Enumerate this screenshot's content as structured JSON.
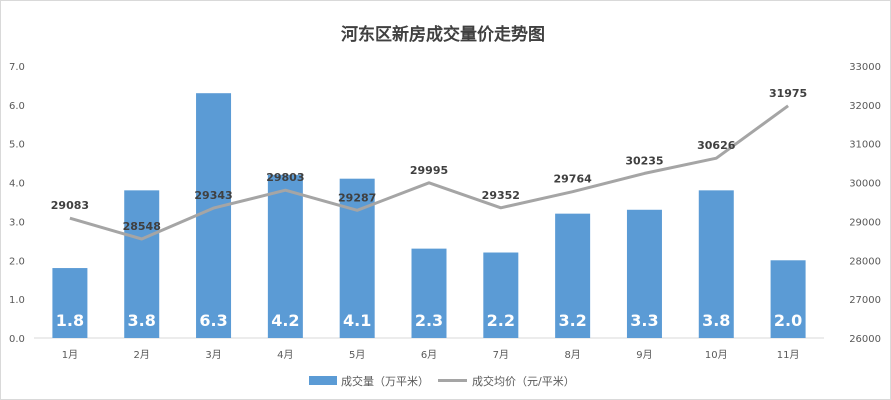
{
  "chart_data": {
    "type": "bar+line",
    "title": "河东区新房成交量价走势图",
    "categories": [
      "1月",
      "2月",
      "3月",
      "4月",
      "5月",
      "6月",
      "7月",
      "8月",
      "9月",
      "10月",
      "11月"
    ],
    "series": [
      {
        "name": "成交量（万平米）",
        "type": "bar",
        "axis": "left",
        "color": "#5b9bd5",
        "values": [
          1.8,
          3.8,
          6.3,
          4.2,
          4.1,
          2.3,
          2.2,
          3.2,
          3.3,
          3.8,
          2.0
        ],
        "labels": [
          "1.8",
          "3.8",
          "6.3",
          "4.2",
          "4.1",
          "2.3",
          "2.2",
          "3.2",
          "3.3",
          "3.8",
          "2.0"
        ]
      },
      {
        "name": "成交均价（元/平米）",
        "type": "line",
        "axis": "right",
        "color": "#a5a5a5",
        "values": [
          29083,
          28548,
          29343,
          29803,
          29287,
          29995,
          29352,
          29764,
          30235,
          30626,
          31975
        ],
        "labels": [
          "29083",
          "28548",
          "29343",
          "29803",
          "29287",
          "29995",
          "29352",
          "29764",
          "30235",
          "30626",
          "31975"
        ]
      }
    ],
    "y_left": {
      "ylim": [
        0,
        7
      ],
      "ticks": [
        0,
        1,
        2,
        3,
        4,
        5,
        6,
        7
      ],
      "tick_labels": [
        "0.0",
        "1.0",
        "2.0",
        "3.0",
        "4.0",
        "5.0",
        "6.0",
        "7.0"
      ]
    },
    "y_right": {
      "ylim": [
        26000,
        33000
      ],
      "ticks": [
        26000,
        27000,
        28000,
        29000,
        30000,
        31000,
        32000,
        33000
      ],
      "tick_labels": [
        "26000",
        "27000",
        "28000",
        "29000",
        "30000",
        "31000",
        "32000",
        "33000"
      ]
    },
    "grid": false,
    "legend": {
      "position": "bottom",
      "items": [
        "成交量（万平米）",
        "成交均价（元/平米）"
      ]
    }
  }
}
